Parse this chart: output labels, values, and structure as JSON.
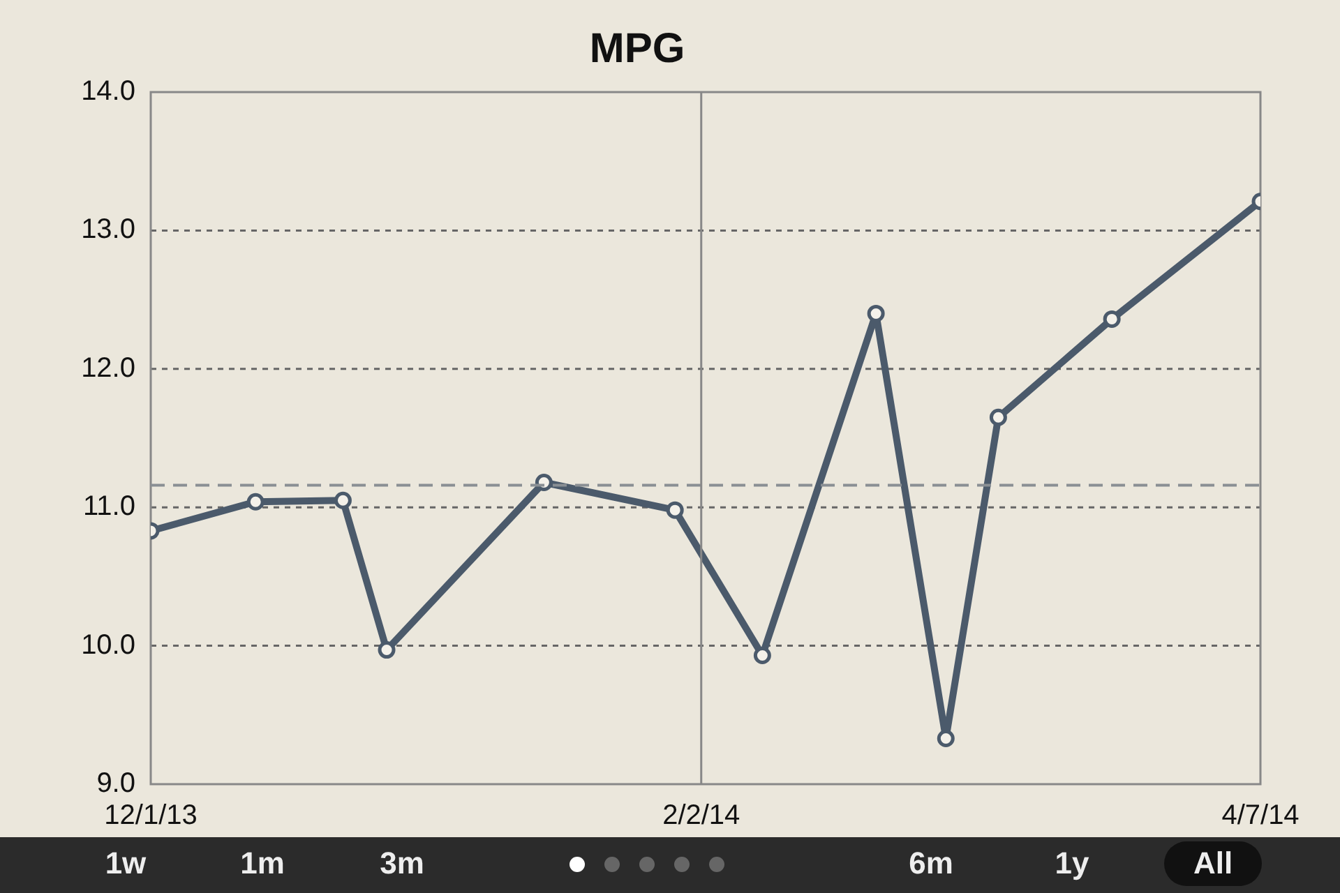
{
  "chart_data": {
    "type": "line",
    "title": "MPG",
    "x": [
      "2013-12-01",
      "2013-12-13",
      "2013-12-23",
      "2013-12-28",
      "2014-01-15",
      "2014-01-30",
      "2014-02-09",
      "2014-02-22",
      "2014-03-02",
      "2014-03-08",
      "2014-03-21",
      "2014-04-07"
    ],
    "series": [
      {
        "color": "#4b5a6b",
        "values": [
          10.83,
          11.04,
          11.05,
          9.97,
          11.18,
          10.98,
          9.93,
          12.4,
          9.33,
          11.65,
          12.36,
          13.21
        ]
      }
    ],
    "xlim": [
      "2013-12-01",
      "2014-04-07"
    ],
    "xticks": [
      {
        "value": "2013-12-01",
        "label": "12/1/13"
      },
      {
        "value": "2014-02-02",
        "label": "2/2/14"
      },
      {
        "value": "2014-04-07",
        "label": "4/7/14"
      }
    ],
    "ylim": [
      9,
      14
    ],
    "yticks": [
      {
        "value": 9,
        "label": "9.0"
      },
      {
        "value": 10,
        "label": "10.0"
      },
      {
        "value": 11,
        "label": "11.0"
      },
      {
        "value": 12,
        "label": "12.0"
      },
      {
        "value": 13,
        "label": "13.0"
      },
      {
        "value": 14,
        "label": "14.0"
      }
    ],
    "ref_lines": [
      {
        "axis": "y",
        "value": 11.16,
        "color": "#8a8f94",
        "line_style": "dashed"
      },
      {
        "axis": "x",
        "value": "2014-02-02",
        "color": "#888888",
        "line_style": "solid"
      }
    ],
    "grid": "y",
    "legend": false,
    "marker": "circle",
    "line_style": "solid",
    "annotations": [
      "1w",
      "1m",
      "3m",
      "6m",
      "1y",
      "All"
    ]
  }
}
